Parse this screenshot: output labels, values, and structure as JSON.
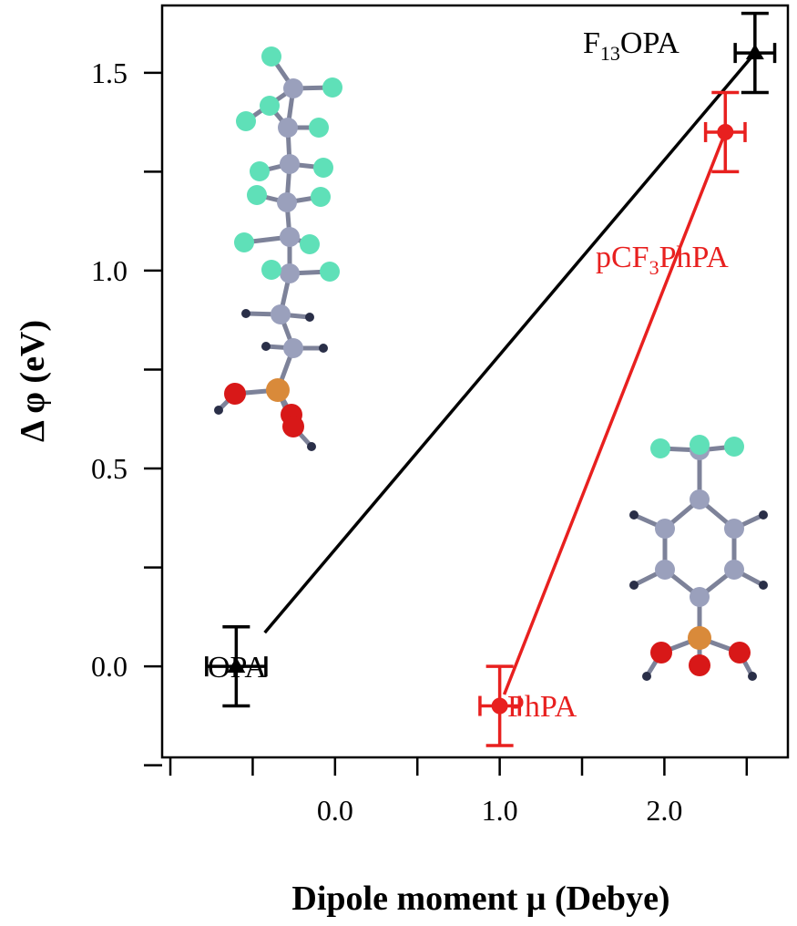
{
  "chart_data": {
    "type": "scatter",
    "xlabel": "Dipole moment μ (Debye)",
    "ylabel": "Δ φ (eV)",
    "xlim": [
      -1.05,
      2.75
    ],
    "ylim": [
      -0.23,
      1.67
    ],
    "x_ticks": [
      -1.0,
      -0.5,
      0.0,
      0.5,
      1.0,
      1.5,
      2.0,
      2.5
    ],
    "x_tick_labels": [
      {
        "value": 0.0,
        "label": "0.0"
      },
      {
        "value": 1.0,
        "label": "1.0"
      },
      {
        "value": 2.0,
        "label": "2.0"
      }
    ],
    "y_ticks": [
      -0.25,
      0.0,
      0.25,
      0.5,
      0.75,
      1.0,
      1.25,
      1.5
    ],
    "y_tick_labels": [
      {
        "value": 0.0,
        "label": "0.0"
      },
      {
        "value": 0.5,
        "label": "0.5"
      },
      {
        "value": 1.0,
        "label": "1.0"
      },
      {
        "value": 1.5,
        "label": "1.5"
      }
    ],
    "series": [
      {
        "color": "#000000",
        "marker": "triangle",
        "points": [
          {
            "label": "OPA",
            "x": -0.6,
            "y": 0.0,
            "xerr": 0.18,
            "yerr": 0.1
          },
          {
            "label": "F13OPA",
            "x": 2.55,
            "y": 1.55,
            "xerr": 0.12,
            "yerr": 0.1
          }
        ]
      },
      {
        "color": "#e8201f",
        "marker": "circle",
        "points": [
          {
            "label": "PhPA",
            "x": 1.0,
            "y": -0.1,
            "xerr": 0.12,
            "yerr": 0.1
          },
          {
            "label": "pCF3PhPA",
            "x": 2.37,
            "y": 1.35,
            "xerr": 0.12,
            "yerr": 0.1
          }
        ]
      }
    ],
    "point_labels": {
      "opa": "OPA",
      "f13opa_main": "F",
      "f13opa_sub": "13",
      "f13opa_tail": "OPA",
      "phpa": "PhPA",
      "pcf3_main": "pCF",
      "pcf3_sub": "3",
      "pcf3_tail": "PhPA"
    },
    "grid": false,
    "legend": "none",
    "insets": [
      "fluorinated alkyl phosphonic acid molecule model",
      "trifluoromethyl phenyl phosphonic acid molecule model"
    ]
  },
  "colors": {
    "carbon": "#9aa0bc",
    "fluorine": "#5fe0b8",
    "phosphorus": "#d98a3a",
    "oxygen": "#d81818",
    "hydrogen": "#2a2f48"
  }
}
